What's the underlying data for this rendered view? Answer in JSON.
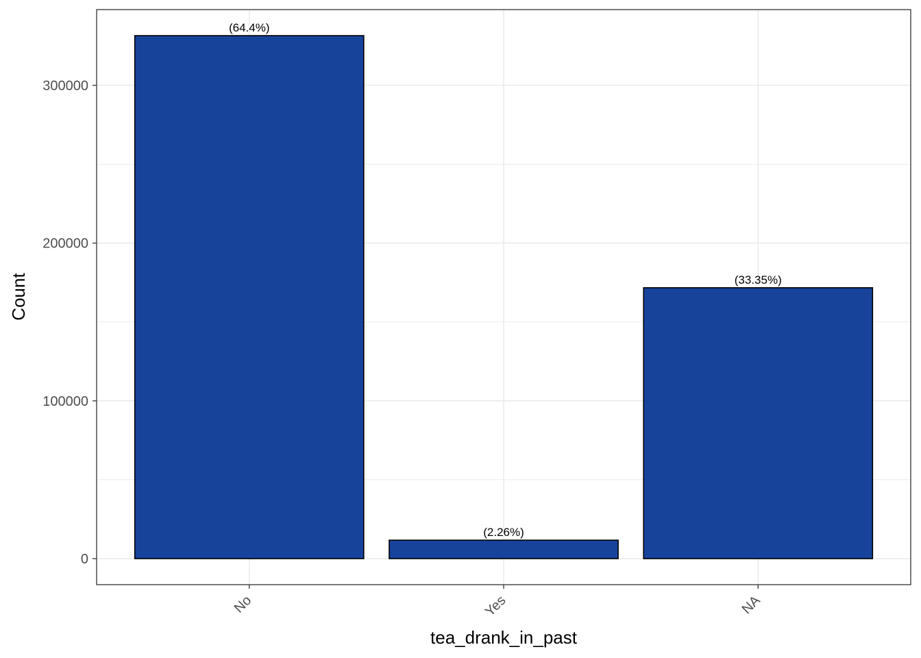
{
  "chart_data": {
    "type": "bar",
    "title": "",
    "xlabel": "tea_drank_in_past",
    "ylabel": "Count",
    "categories": [
      "No",
      "Yes",
      "NA"
    ],
    "values": [
      331500,
      11700,
      171700
    ],
    "labels": [
      "(64.4%)",
      "(2.26%)",
      "(33.35%)"
    ],
    "ylim": [
      -16500,
      348000
    ],
    "yticks": [
      0,
      100000,
      200000,
      300000
    ],
    "ytick_labels": [
      "0",
      "100000",
      "200000",
      "300000"
    ],
    "grid": true,
    "legend": "none",
    "colors": {
      "bar_fill": "#17439a",
      "bar_stroke": "#000000",
      "grid": "#ebebeb",
      "panel_border": "#333333"
    }
  }
}
